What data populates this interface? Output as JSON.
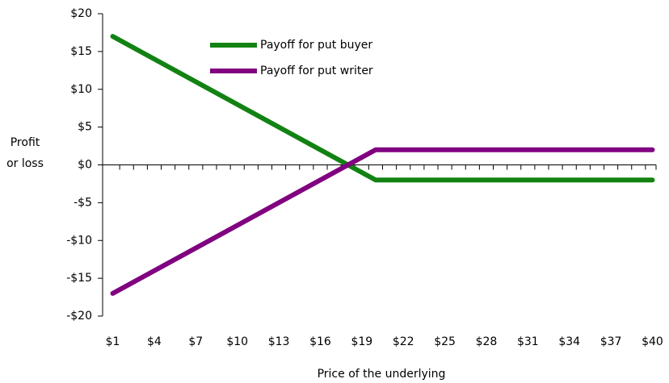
{
  "chart_data": {
    "type": "line",
    "x_label": "Price of the underlying",
    "y_label": "Profit or loss",
    "categories": [
      "$1",
      null,
      null,
      "$4",
      null,
      null,
      "$7",
      null,
      null,
      "$10",
      null,
      null,
      "$13",
      null,
      null,
      "$16",
      null,
      null,
      "$19",
      null,
      null,
      "$22",
      null,
      null,
      "$25",
      null,
      null,
      "$28",
      null,
      null,
      "$31",
      null,
      null,
      "$34",
      null,
      null,
      "$37",
      null,
      null,
      "$40"
    ],
    "series": [
      {
        "name": "Payoff for put buyer",
        "color": "#128212",
        "values": [
          17,
          16,
          15,
          14,
          13,
          12,
          11,
          10,
          9,
          8,
          7,
          6,
          5,
          4,
          3,
          2,
          1,
          0,
          -1,
          -2,
          -2,
          -2,
          -2,
          -2,
          -2,
          -2,
          -2,
          -2,
          -2,
          -2,
          -2,
          -2,
          -2,
          -2,
          -2,
          -2,
          -2,
          -2,
          -2,
          -2
        ]
      },
      {
        "name": "Payoff for put writer",
        "color": "#800080",
        "values": [
          -17,
          -16,
          -15,
          -14,
          -13,
          -12,
          -11,
          -10,
          -9,
          -8,
          -7,
          -6,
          -5,
          -4,
          -3,
          -2,
          -1,
          0,
          1,
          2,
          2,
          2,
          2,
          2,
          2,
          2,
          2,
          2,
          2,
          2,
          2,
          2,
          2,
          2,
          2,
          2,
          2,
          2,
          2,
          2
        ]
      }
    ],
    "ylim": [
      -20,
      20
    ],
    "yticks": [
      {
        "value": -20,
        "label": "-$20"
      },
      {
        "value": -15,
        "label": "-$15"
      },
      {
        "value": -10,
        "label": "-$10"
      },
      {
        "value": -5,
        "label": "-$5"
      },
      {
        "value": 0,
        "label": "$0"
      },
      {
        "value": 5,
        "label": "$5"
      },
      {
        "value": 10,
        "label": "$10"
      },
      {
        "value": 15,
        "label": "$15"
      },
      {
        "value": 20,
        "label": "$20"
      }
    ],
    "grid": false
  }
}
